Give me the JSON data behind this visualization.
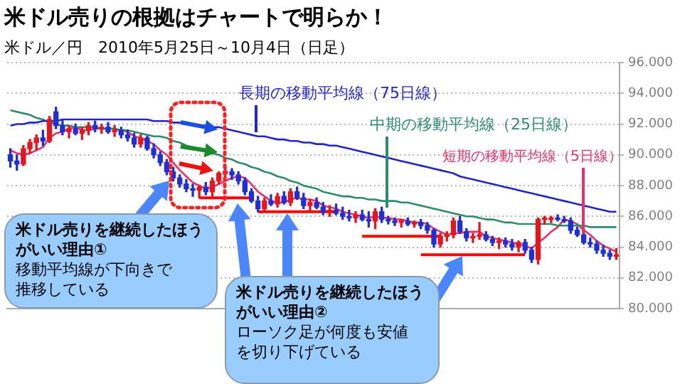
{
  "chart_data": {
    "type": "candlestick",
    "title": "米ドル売りの根拠はチャートで明らか！",
    "subtitle": "米ドル／円　2010年5月25日～10月4日（日足）",
    "categories": [
      null,
      null,
      null,
      null,
      null,
      null,
      null,
      null,
      null,
      null,
      null,
      null,
      null,
      null,
      null,
      null,
      null,
      null,
      null,
      null,
      null,
      null,
      null,
      null,
      null,
      null,
      null,
      null,
      null,
      null,
      null,
      null,
      null,
      null,
      null,
      null,
      null,
      null,
      null,
      null,
      null,
      null,
      null,
      null,
      null,
      null,
      null,
      null,
      null,
      null,
      null,
      null,
      null,
      null,
      null,
      null,
      null,
      null,
      null,
      null,
      null,
      null,
      null,
      null,
      null,
      null,
      null,
      null,
      null,
      null,
      null,
      null,
      null,
      null,
      null,
      null,
      null,
      null,
      null,
      null,
      null,
      null,
      null,
      null,
      null,
      null,
      null,
      null,
      null,
      null,
      null,
      null,
      null,
      null
    ],
    "ohlc": [
      [
        90.0,
        90.4,
        89.2,
        89.6
      ],
      [
        89.6,
        90.0,
        89.0,
        89.4
      ],
      [
        89.4,
        90.6,
        89.3,
        90.4
      ],
      [
        90.4,
        91.0,
        90.1,
        90.8
      ],
      [
        90.8,
        91.3,
        90.3,
        91.1
      ],
      [
        91.1,
        91.6,
        90.6,
        90.9
      ],
      [
        90.9,
        92.5,
        90.8,
        92.3
      ],
      [
        92.8,
        93.1,
        91.7,
        91.9
      ],
      [
        91.9,
        92.3,
        91.3,
        91.5
      ],
      [
        91.5,
        91.9,
        91.1,
        91.7
      ],
      [
        91.7,
        92.0,
        91.3,
        91.4
      ],
      [
        91.4,
        91.8,
        91.0,
        91.6
      ],
      [
        91.6,
        92.1,
        91.3,
        91.9
      ],
      [
        91.9,
        92.2,
        91.5,
        91.7
      ],
      [
        91.7,
        92.0,
        91.4,
        91.8
      ],
      [
        91.8,
        92.1,
        91.4,
        91.5
      ],
      [
        91.5,
        91.9,
        91.2,
        91.6
      ],
      [
        91.6,
        91.8,
        91.1,
        91.3
      ],
      [
        91.3,
        91.6,
        90.9,
        91.1
      ],
      [
        91.1,
        91.4,
        90.5,
        90.7
      ],
      [
        90.7,
        91.3,
        90.5,
        91.1
      ],
      [
        91.1,
        91.2,
        90.3,
        90.4
      ],
      [
        90.4,
        90.7,
        89.8,
        90.0
      ],
      [
        90.0,
        90.2,
        89.3,
        89.5
      ],
      [
        89.5,
        89.7,
        88.7,
        88.9
      ],
      [
        88.9,
        89.2,
        88.3,
        88.5
      ],
      [
        88.5,
        88.7,
        87.9,
        88.1
      ],
      [
        88.1,
        88.4,
        87.6,
        87.8
      ],
      [
        87.8,
        88.1,
        87.3,
        87.7
      ],
      [
        87.7,
        88.0,
        87.2,
        87.9
      ],
      [
        87.9,
        88.2,
        87.4,
        87.6
      ],
      [
        87.6,
        88.5,
        87.2,
        88.3
      ],
      [
        88.3,
        88.9,
        88.1,
        88.8
      ],
      [
        88.8,
        89.2,
        88.5,
        88.9
      ],
      [
        88.9,
        89.1,
        88.4,
        88.7
      ],
      [
        88.7,
        88.9,
        88.1,
        88.3
      ],
      [
        88.3,
        88.5,
        87.4,
        87.6
      ],
      [
        87.6,
        87.8,
        86.9,
        87.0
      ],
      [
        87.0,
        87.3,
        86.3,
        86.5
      ],
      [
        86.5,
        87.2,
        86.4,
        87.0
      ],
      [
        87.0,
        87.4,
        86.7,
        86.8
      ],
      [
        86.8,
        87.5,
        86.6,
        87.3
      ],
      [
        87.3,
        87.6,
        86.8,
        86.9
      ],
      [
        86.9,
        87.8,
        86.7,
        87.6
      ],
      [
        87.6,
        87.9,
        87.1,
        87.2
      ],
      [
        87.2,
        87.5,
        86.5,
        86.7
      ],
      [
        86.7,
        87.1,
        86.3,
        86.9
      ],
      [
        86.9,
        87.2,
        86.5,
        86.6
      ],
      [
        86.6,
        86.9,
        86.1,
        86.3
      ],
      [
        86.3,
        86.7,
        86.0,
        86.4
      ],
      [
        86.4,
        86.8,
        86.1,
        86.2
      ],
      [
        86.2,
        86.6,
        85.8,
        86.0
      ],
      [
        86.0,
        86.4,
        85.7,
        85.9
      ],
      [
        85.9,
        86.3,
        85.6,
        86.1
      ],
      [
        86.1,
        86.4,
        85.7,
        85.8
      ],
      [
        85.8,
        86.3,
        85.3,
        85.7
      ],
      [
        85.7,
        86.5,
        85.2,
        86.3
      ],
      [
        86.3,
        86.6,
        85.6,
        85.8
      ],
      [
        85.8,
        86.0,
        85.5,
        85.7
      ],
      [
        85.7,
        85.9,
        85.4,
        85.6
      ],
      [
        85.6,
        85.8,
        85.3,
        85.7
      ],
      [
        85.7,
        85.9,
        85.4,
        85.5
      ],
      [
        85.5,
        85.7,
        85.3,
        85.6
      ],
      [
        85.6,
        85.8,
        85.2,
        85.4
      ],
      [
        85.4,
        85.6,
        84.9,
        85.1
      ],
      [
        85.1,
        85.2,
        84.0,
        84.2
      ],
      [
        84.2,
        84.9,
        84.0,
        84.7
      ],
      [
        84.7,
        85.0,
        84.4,
        84.8
      ],
      [
        84.8,
        85.9,
        84.6,
        85.7
      ],
      [
        85.7,
        86.0,
        84.9,
        85.0
      ],
      [
        85.0,
        85.2,
        84.4,
        84.6
      ],
      [
        84.6,
        84.9,
        84.3,
        84.7
      ],
      [
        84.7,
        85.6,
        84.5,
        84.8
      ],
      [
        84.8,
        85.0,
        84.4,
        84.5
      ],
      [
        84.5,
        84.7,
        84.1,
        84.3
      ],
      [
        84.3,
        84.6,
        83.9,
        84.4
      ],
      [
        84.4,
        84.6,
        84.0,
        84.2
      ],
      [
        84.2,
        84.5,
        83.8,
        84.0
      ],
      [
        84.0,
        84.4,
        83.7,
        84.3
      ],
      [
        84.3,
        84.5,
        83.6,
        83.8
      ],
      [
        83.8,
        84.0,
        83.0,
        83.2
      ],
      [
        83.2,
        85.9,
        82.9,
        85.8
      ],
      [
        85.8,
        86.0,
        85.5,
        85.9
      ],
      [
        85.8,
        86.0,
        85.6,
        85.9
      ],
      [
        85.9,
        86.1,
        85.7,
        85.8
      ],
      [
        85.8,
        86.0,
        85.6,
        85.7
      ],
      [
        85.7,
        85.9,
        84.9,
        85.1
      ],
      [
        85.1,
        85.3,
        84.7,
        84.8
      ],
      [
        84.8,
        85.2,
        84.2,
        84.3
      ],
      [
        84.3,
        84.6,
        84.0,
        84.2
      ],
      [
        84.2,
        84.4,
        83.6,
        83.8
      ],
      [
        83.8,
        84.1,
        83.4,
        83.6
      ],
      [
        83.6,
        83.8,
        83.2,
        83.4
      ],
      [
        83.4,
        83.9,
        83.2,
        83.5
      ]
    ],
    "colors": [
      "#1f2fd8",
      "#1f2fd8",
      "#e8141c",
      "#e8141c",
      "#e8141c",
      "#1f2fd8",
      "#e8141c",
      "#1f2fd8",
      "#1f2fd8",
      "#e8141c",
      "#1f2fd8",
      "#e8141c",
      "#e8141c",
      "#1f2fd8",
      "#e8141c",
      "#1f2fd8",
      "#e8141c",
      "#1f2fd8",
      "#1f2fd8",
      "#1f2fd8",
      "#e8141c",
      "#1f2fd8",
      "#1f2fd8",
      "#1f2fd8",
      "#1f2fd8",
      "#1f2fd8",
      "#1f2fd8",
      "#1f2fd8",
      "#1f2fd8",
      "#e8141c",
      "#1f2fd8",
      "#e8141c",
      "#e8141c",
      "#e8141c",
      "#1f2fd8",
      "#1f2fd8",
      "#1f2fd8",
      "#1f2fd8",
      "#1f2fd8",
      "#e8141c",
      "#1f2fd8",
      "#e8141c",
      "#1f2fd8",
      "#e8141c",
      "#1f2fd8",
      "#1f2fd8",
      "#e8141c",
      "#1f2fd8",
      "#1f2fd8",
      "#e8141c",
      "#1f2fd8",
      "#1f2fd8",
      "#1f2fd8",
      "#e8141c",
      "#1f2fd8",
      "#1f2fd8",
      "#e8141c",
      "#1f2fd8",
      "#1f2fd8",
      "#1f2fd8",
      "#e8141c",
      "#1f2fd8",
      "#e8141c",
      "#1f2fd8",
      "#1f2fd8",
      "#1f2fd8",
      "#e8141c",
      "#e8141c",
      "#e8141c",
      "#1f2fd8",
      "#1f2fd8",
      "#e8141c",
      "#e8141c",
      "#1f2fd8",
      "#1f2fd8",
      "#e8141c",
      "#1f2fd8",
      "#1f2fd8",
      "#e8141c",
      "#1f2fd8",
      "#1f2fd8",
      "#e8141c",
      "#e8141c",
      "#e8141c",
      "#1f2fd8",
      "#1f2fd8",
      "#1f2fd8",
      "#1f2fd8",
      "#1f2fd8",
      "#1f2fd8",
      "#1f2fd8",
      "#1f2fd8",
      "#1f2fd8",
      "#e8141c"
    ],
    "series": [
      {
        "type": "line",
        "name": "長期の移動平均線（75日線）",
        "color": "#2424c8",
        "values": [
          91.9,
          92.0,
          92.0,
          92.1,
          92.1,
          92.2,
          92.2,
          92.2,
          92.3,
          92.3,
          92.3,
          92.3,
          92.3,
          92.3,
          92.3,
          92.3,
          92.3,
          92.3,
          92.3,
          92.3,
          92.3,
          92.3,
          92.2,
          92.2,
          92.2,
          92.1,
          92.1,
          92.0,
          92.0,
          91.9,
          91.9,
          91.8,
          91.8,
          91.7,
          91.6,
          91.5,
          91.4,
          91.3,
          91.2,
          91.2,
          91.1,
          91.0,
          91.0,
          90.9,
          90.9,
          90.8,
          90.8,
          90.7,
          90.7,
          90.6,
          90.6,
          90.5,
          90.4,
          90.3,
          90.2,
          90.1,
          90.0,
          89.9,
          89.8,
          89.7,
          89.6,
          89.5,
          89.4,
          89.3,
          89.2,
          89.1,
          89.0,
          88.9,
          88.8,
          88.6,
          88.5,
          88.4,
          88.3,
          88.2,
          88.1,
          88.0,
          87.9,
          87.8,
          87.7,
          87.6,
          87.5,
          87.4,
          87.3,
          87.2,
          87.1,
          87.0,
          86.9,
          86.8,
          86.7,
          86.6,
          86.5,
          86.4,
          86.3,
          86.3
        ]
      },
      {
        "type": "line",
        "name": "中期の移動平均線（25日線）",
        "color": "#2e8b6e",
        "values": [
          92.9,
          92.8,
          92.7,
          92.6,
          92.4,
          92.3,
          92.1,
          92.0,
          91.9,
          91.9,
          91.8,
          91.8,
          91.8,
          91.8,
          91.7,
          91.7,
          91.7,
          91.6,
          91.6,
          91.5,
          91.4,
          91.3,
          91.2,
          91.2,
          91.1,
          90.9,
          90.8,
          90.6,
          90.5,
          90.3,
          90.2,
          90.1,
          90.0,
          89.8,
          89.7,
          89.5,
          89.4,
          89.2,
          89.1,
          88.9,
          88.8,
          88.6,
          88.5,
          88.3,
          88.2,
          88.0,
          87.9,
          87.8,
          87.6,
          87.5,
          87.4,
          87.3,
          87.3,
          87.2,
          87.2,
          87.1,
          87.1,
          87.0,
          87.0,
          87.0,
          86.9,
          86.9,
          86.8,
          86.7,
          86.6,
          86.5,
          86.4,
          86.3,
          86.2,
          86.1,
          86.0,
          86.0,
          85.9,
          85.8,
          85.8,
          85.7,
          85.6,
          85.6,
          85.5,
          85.5,
          85.5,
          85.5,
          85.5,
          85.5,
          85.4,
          85.4,
          85.4,
          85.4,
          85.4,
          85.3,
          85.3,
          85.3,
          85.3,
          85.3
        ]
      },
      {
        "type": "line",
        "name": "短期の移動平均線（5日線）",
        "color": "#e8306a",
        "values": [
          90.3,
          90.1,
          90.0,
          90.1,
          90.3,
          90.5,
          91.1,
          91.4,
          91.5,
          91.7,
          91.8,
          91.6,
          91.6,
          91.7,
          91.7,
          91.7,
          91.7,
          91.6,
          91.5,
          91.2,
          91.1,
          90.9,
          90.7,
          90.3,
          90.0,
          89.5,
          89.0,
          88.6,
          88.2,
          88.0,
          87.8,
          87.9,
          88.1,
          88.3,
          88.5,
          88.6,
          88.5,
          88.1,
          87.6,
          87.3,
          87.0,
          86.9,
          86.9,
          87.1,
          87.2,
          87.1,
          87.1,
          87.0,
          86.7,
          86.6,
          86.5,
          86.3,
          86.2,
          86.1,
          86.0,
          85.9,
          86.0,
          85.9,
          85.9,
          85.8,
          85.8,
          85.7,
          85.6,
          85.6,
          85.5,
          85.2,
          85.0,
          84.8,
          84.9,
          84.9,
          85.0,
          85.0,
          85.0,
          84.7,
          84.6,
          84.5,
          84.4,
          84.3,
          84.2,
          84.1,
          83.9,
          84.3,
          84.6,
          85.0,
          85.3,
          85.8,
          85.7,
          85.5,
          85.1,
          84.8,
          84.4,
          84.1,
          83.9,
          83.7
        ]
      },
      {
        "type": "line",
        "color": "#ff0000",
        "values": [
          null,
          null,
          null,
          null,
          null,
          null,
          null,
          null,
          null,
          null,
          null,
          null,
          null,
          null,
          null,
          null,
          null,
          null,
          null,
          null,
          null,
          null,
          null,
          null,
          null,
          null,
          null,
          null,
          null,
          87.2,
          87.2,
          87.2,
          87.2,
          87.2,
          87.2,
          87.2,
          87.2,
          87.2,
          null,
          null,
          null,
          null,
          null,
          null,
          null,
          null,
          null,
          null,
          null,
          null,
          null,
          null,
          null,
          null,
          null,
          null,
          null,
          null,
          null,
          null,
          null,
          null,
          null,
          null,
          null,
          null,
          null,
          null,
          null,
          null,
          null,
          null,
          null,
          null,
          null,
          null,
          null,
          null,
          null,
          null,
          null,
          null,
          null,
          null,
          null,
          null,
          null,
          null,
          null,
          null,
          null,
          null,
          null,
          null
        ]
      },
      {
        "type": "line",
        "color": "#ff0000",
        "values": [
          null,
          null,
          null,
          null,
          null,
          null,
          null,
          null,
          null,
          null,
          null,
          null,
          null,
          null,
          null,
          null,
          null,
          null,
          null,
          null,
          null,
          null,
          null,
          null,
          null,
          null,
          null,
          null,
          null,
          null,
          null,
          null,
          null,
          null,
          null,
          null,
          null,
          null,
          86.3,
          86.3,
          86.3,
          86.3,
          86.3,
          86.3,
          86.3,
          86.3,
          86.3,
          86.3,
          86.3,
          86.3,
          86.3,
          null,
          null,
          null,
          null,
          null,
          null,
          null,
          null,
          null,
          null,
          null,
          null,
          null,
          null,
          null,
          null,
          null,
          null,
          null,
          null,
          null,
          null,
          null,
          null,
          null,
          null,
          null,
          null,
          null,
          null,
          null,
          null,
          null,
          null,
          null,
          null,
          null,
          null,
          null,
          null,
          null,
          null,
          null
        ]
      },
      {
        "type": "line",
        "color": "#ff0000",
        "values": [
          null,
          null,
          null,
          null,
          null,
          null,
          null,
          null,
          null,
          null,
          null,
          null,
          null,
          null,
          null,
          null,
          null,
          null,
          null,
          null,
          null,
          null,
          null,
          null,
          null,
          null,
          null,
          null,
          null,
          null,
          null,
          null,
          null,
          null,
          null,
          null,
          null,
          null,
          null,
          null,
          null,
          null,
          null,
          null,
          null,
          null,
          null,
          null,
          null,
          null,
          null,
          null,
          null,
          null,
          84.7,
          84.7,
          84.7,
          84.7,
          84.7,
          84.7,
          84.7,
          84.7,
          84.7,
          84.7,
          84.7,
          84.7,
          84.7,
          null,
          null,
          null,
          null,
          null,
          null,
          null,
          null,
          null,
          null,
          null,
          null,
          null,
          null,
          null,
          null,
          null,
          null,
          null,
          null,
          null,
          null,
          null,
          null,
          null,
          null,
          null
        ]
      },
      {
        "type": "line",
        "color": "#ff0000",
        "values": [
          null,
          null,
          null,
          null,
          null,
          null,
          null,
          null,
          null,
          null,
          null,
          null,
          null,
          null,
          null,
          null,
          null,
          null,
          null,
          null,
          null,
          null,
          null,
          null,
          null,
          null,
          null,
          null,
          null,
          null,
          null,
          null,
          null,
          null,
          null,
          null,
          null,
          null,
          null,
          null,
          null,
          null,
          null,
          null,
          null,
          null,
          null,
          null,
          null,
          null,
          null,
          null,
          null,
          null,
          null,
          null,
          null,
          null,
          null,
          null,
          null,
          null,
          null,
          83.5,
          83.5,
          83.5,
          83.5,
          83.5,
          83.5,
          83.5,
          83.5,
          83.5,
          83.5,
          83.5,
          83.5,
          83.5,
          83.5,
          83.5,
          83.5,
          83.5,
          null,
          null,
          null,
          null,
          null,
          null,
          null,
          null,
          null,
          null,
          null,
          null,
          null,
          null
        ]
      }
    ],
    "ylim": [
      80,
      96
    ],
    "yticks": [
      {
        "value": 80,
        "label": "80.000"
      },
      {
        "value": 82,
        "label": "82.000"
      },
      {
        "value": 84,
        "label": "84.000"
      },
      {
        "value": 86,
        "label": "86.000"
      },
      {
        "value": 88,
        "label": "88.000"
      },
      {
        "value": 90,
        "label": "90.000"
      },
      {
        "value": 92,
        "label": "92.000"
      },
      {
        "value": 94,
        "label": "94.000"
      },
      {
        "value": 96,
        "label": "96.000"
      }
    ],
    "grid": "y",
    "legend": false,
    "annotations": [
      "米ドル売りを継続したほうがいい理由①",
      "移動平均線が下向きで推移している",
      "米ドル売りを継続したほうがいい理由②",
      "ローソク足が何度も安値を切り下げている"
    ]
  }
}
